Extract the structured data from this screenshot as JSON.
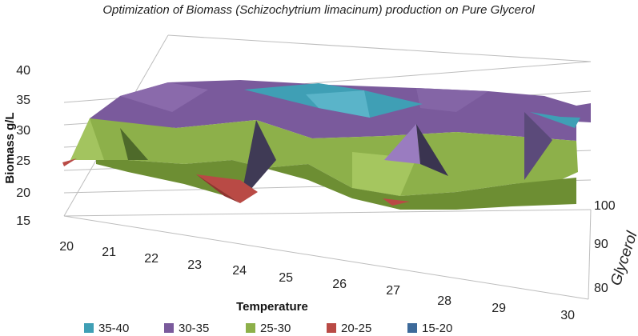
{
  "chart_data": {
    "type": "surface",
    "title": "Optimization of  Biomass (Schizochytrium limacinum)  production on Pure Glycerol",
    "zlabel": "Biomass g/L",
    "xlabel": "Temperature",
    "ylabel": "Glycerol",
    "z_ticks": [
      "15",
      "20",
      "25",
      "30",
      "35",
      "40"
    ],
    "z_range": [
      15,
      40
    ],
    "x_ticks": [
      "20",
      "21",
      "22",
      "23",
      "24",
      "25",
      "26",
      "27",
      "28",
      "29",
      "30"
    ],
    "y_ticks": [
      "80",
      "90",
      "100"
    ],
    "legend": [
      {
        "label": "35-40",
        "color": "#3f9fb5"
      },
      {
        "label": "30-35",
        "color": "#7a5a9c"
      },
      {
        "label": "25-30",
        "color": "#8db04a"
      },
      {
        "label": "20-25",
        "color": "#b94a45"
      },
      {
        "label": "15-20",
        "color": "#3d6a9a"
      }
    ]
  }
}
